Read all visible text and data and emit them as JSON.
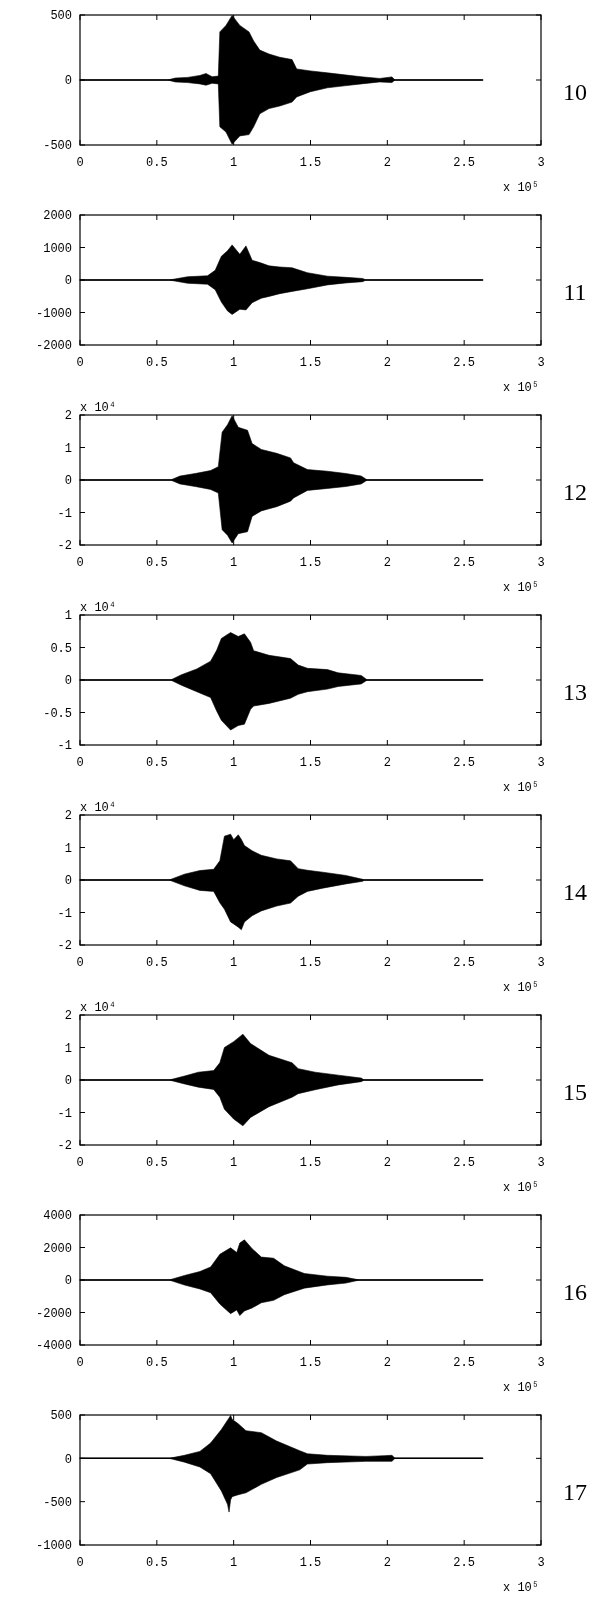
{
  "chart_data": [
    {
      "type": "line",
      "annotations": [
        "10"
      ],
      "xlabel": "x 10⁵",
      "xlim": [
        0,
        3
      ],
      "xticks": [
        0,
        0.5,
        1,
        1.5,
        2,
        2.5,
        3
      ],
      "ylim": [
        -500,
        500
      ],
      "yticks": [
        -500,
        0,
        500
      ],
      "series": [
        {
          "color": "#000000",
          "x": [
            0,
            0.57,
            0.62,
            0.7,
            0.78,
            0.82,
            0.86,
            0.9,
            0.91,
            0.95,
            0.99,
            1.04,
            1.1,
            1.13,
            1.17,
            1.23,
            1.3,
            1.38,
            1.41,
            1.5,
            1.61,
            1.72,
            1.83,
            1.95,
            2.03,
            2.05,
            2.62
          ],
          "values": [
            0,
            0,
            0,
            0,
            0,
            0,
            0,
            0,
            0,
            0,
            0,
            0,
            0,
            0,
            0,
            0,
            0,
            0,
            0,
            0,
            0,
            0,
            0,
            0,
            0,
            0,
            0
          ],
          "upper": [
            0,
            0,
            15,
            20,
            35,
            50,
            25,
            30,
            370,
            420,
            497,
            420,
            370,
            300,
            230,
            200,
            175,
            157,
            85,
            70,
            55,
            40,
            25,
            12,
            24,
            0,
            0
          ],
          "lower": [
            0,
            0,
            -15,
            -20,
            -30,
            -40,
            -25,
            -30,
            -360,
            -400,
            -494,
            -430,
            -420,
            -360,
            -260,
            -220,
            -200,
            -170,
            -130,
            -90,
            -60,
            -45,
            -30,
            -15,
            -20,
            0,
            0
          ]
        }
      ]
    },
    {
      "type": "line",
      "annotations": [
        "11"
      ],
      "xlabel": "x 10⁵",
      "xlim": [
        0,
        3
      ],
      "xticks": [
        0,
        0.5,
        1,
        1.5,
        2,
        2.5,
        3
      ],
      "ylim": [
        -2000,
        2000
      ],
      "yticks": [
        -2000,
        -1000,
        0,
        1000,
        2000
      ],
      "series": [
        {
          "color": "#000000",
          "x": [
            0,
            0.58,
            0.7,
            0.83,
            0.88,
            0.92,
            0.96,
            0.99,
            1.04,
            1.08,
            1.12,
            1.18,
            1.23,
            1.3,
            1.38,
            1.48,
            1.61,
            1.73,
            1.84,
            1.86,
            2.62
          ],
          "values": [
            0,
            0,
            0,
            0,
            0,
            0,
            0,
            0,
            0,
            0,
            0,
            0,
            0,
            0,
            0,
            0,
            0,
            0,
            0,
            0,
            0
          ],
          "upper": [
            0,
            0,
            100,
            130,
            300,
            730,
            900,
            1080,
            790,
            1050,
            610,
            520,
            435,
            400,
            376,
            224,
            118,
            82,
            47,
            0,
            0
          ],
          "lower": [
            0,
            0,
            -100,
            -130,
            -300,
            -680,
            -950,
            -1060,
            -900,
            -920,
            -700,
            -560,
            -505,
            -420,
            -350,
            -270,
            -150,
            -90,
            -50,
            0,
            0
          ]
        }
      ]
    },
    {
      "type": "line",
      "annotations": [
        "12"
      ],
      "xlabel": "x 10⁵",
      "ylabel": "x 10⁴",
      "xlim": [
        0,
        3
      ],
      "xticks": [
        0,
        0.5,
        1,
        1.5,
        2,
        2.5,
        3
      ],
      "ylim": [
        -2,
        2
      ],
      "yticks": [
        -2,
        -1,
        0,
        1,
        2
      ],
      "series": [
        {
          "color": "#000000",
          "x": [
            0,
            0.59,
            0.65,
            0.75,
            0.85,
            0.9,
            0.925,
            0.96,
            0.99,
            1.03,
            1.09,
            1.12,
            1.18,
            1.28,
            1.37,
            1.39,
            1.48,
            1.61,
            1.73,
            1.83,
            1.87,
            2.62
          ],
          "values": [
            0,
            0,
            0,
            0,
            0,
            0,
            0,
            0,
            0,
            0,
            0,
            0,
            0,
            0,
            0,
            0,
            0,
            0,
            0,
            0,
            0,
            0
          ],
          "upper": [
            0,
            0,
            0.12,
            0.2,
            0.29,
            0.41,
            1.47,
            1.7,
            1.98,
            1.62,
            1.53,
            1.12,
            0.94,
            0.82,
            0.68,
            0.53,
            0.32,
            0.27,
            0.2,
            0.12,
            0,
            0
          ],
          "lower": [
            0,
            0,
            -0.12,
            -0.2,
            -0.29,
            -0.4,
            -1.53,
            -1.7,
            -1.94,
            -1.65,
            -1.59,
            -1.12,
            -0.95,
            -0.82,
            -0.65,
            -0.55,
            -0.32,
            -0.26,
            -0.2,
            -0.12,
            0,
            0
          ]
        }
      ]
    },
    {
      "type": "line",
      "annotations": [
        "13"
      ],
      "xlabel": "x 10⁵",
      "ylabel": "x 10⁴",
      "xlim": [
        0,
        3
      ],
      "xticks": [
        0,
        0.5,
        1,
        1.5,
        2,
        2.5,
        3
      ],
      "ylim": [
        -1,
        1
      ],
      "yticks": [
        -1,
        -0.5,
        0,
        0.5,
        1
      ],
      "series": [
        {
          "color": "#000000",
          "x": [
            0,
            0.59,
            0.66,
            0.76,
            0.85,
            0.89,
            0.92,
            0.98,
            1.03,
            1.07,
            1.11,
            1.13,
            1.23,
            1.37,
            1.42,
            1.48,
            1.61,
            1.68,
            1.83,
            1.87,
            2.62
          ],
          "values": [
            0,
            0,
            0,
            0,
            0,
            0,
            0,
            0,
            0,
            0,
            0,
            0,
            0,
            0,
            0,
            0,
            0,
            0,
            0,
            0,
            0
          ],
          "upper": [
            0,
            0,
            0.08,
            0.17,
            0.29,
            0.46,
            0.64,
            0.73,
            0.67,
            0.71,
            0.58,
            0.45,
            0.38,
            0.33,
            0.23,
            0.18,
            0.16,
            0.11,
            0.07,
            0,
            0
          ],
          "lower": [
            0,
            0,
            -0.08,
            -0.18,
            -0.27,
            -0.48,
            -0.62,
            -0.77,
            -0.7,
            -0.68,
            -0.45,
            -0.4,
            -0.36,
            -0.28,
            -0.22,
            -0.18,
            -0.14,
            -0.1,
            -0.06,
            0,
            0
          ]
        }
      ]
    },
    {
      "type": "line",
      "annotations": [
        "14"
      ],
      "xlabel": "x 10⁵",
      "ylabel": "x 10⁴",
      "xlim": [
        0,
        3
      ],
      "xticks": [
        0,
        0.5,
        1,
        1.5,
        2,
        2.5,
        3
      ],
      "ylim": [
        -2,
        2
      ],
      "yticks": [
        -2,
        -1,
        0,
        1,
        2
      ],
      "series": [
        {
          "color": "#000000",
          "x": [
            0,
            0.58,
            0.68,
            0.78,
            0.87,
            0.91,
            0.94,
            0.98,
            1.0,
            1.03,
            1.05,
            1.07,
            1.12,
            1.18,
            1.28,
            1.37,
            1.42,
            1.48,
            1.58,
            1.73,
            1.84,
            1.85,
            2.62
          ],
          "values": [
            0,
            0,
            0,
            0,
            0,
            0,
            0,
            0,
            0,
            0,
            0,
            0,
            0,
            0,
            0,
            0,
            0,
            0,
            0,
            0,
            0,
            0,
            0
          ],
          "upper": [
            0,
            0,
            0.18,
            0.29,
            0.33,
            0.59,
            1.35,
            1.41,
            1.24,
            1.39,
            1.25,
            1.06,
            0.9,
            0.76,
            0.65,
            0.59,
            0.35,
            0.3,
            0.24,
            0.14,
            0.02,
            0,
            0
          ],
          "lower": [
            0,
            0,
            -0.18,
            -0.32,
            -0.35,
            -0.7,
            -0.9,
            -1.29,
            -1.35,
            -1.45,
            -1.53,
            -1.29,
            -1.1,
            -0.95,
            -0.8,
            -0.71,
            -0.5,
            -0.35,
            -0.25,
            -0.12,
            -0.04,
            0,
            0
          ]
        }
      ]
    },
    {
      "type": "line",
      "annotations": [
        "15"
      ],
      "xlabel": "x 10⁵",
      "ylabel": "x 10⁴",
      "xlim": [
        0,
        3
      ],
      "xticks": [
        0,
        0.5,
        1,
        1.5,
        2,
        2.5,
        3
      ],
      "ylim": [
        -2,
        2
      ],
      "yticks": [
        -2,
        -1,
        0,
        1,
        2
      ],
      "series": [
        {
          "color": "#000000",
          "x": [
            0,
            0.58,
            0.68,
            0.77,
            0.87,
            0.91,
            0.94,
            1.0,
            1.06,
            1.11,
            1.23,
            1.38,
            1.42,
            1.53,
            1.68,
            1.83,
            1.85,
            2.62
          ],
          "values": [
            0,
            0,
            0,
            0,
            0,
            0,
            0,
            0,
            0,
            0,
            0,
            0,
            0,
            0,
            0,
            0,
            0,
            0
          ],
          "upper": [
            0,
            0,
            0.12,
            0.24,
            0.29,
            0.53,
            1.0,
            1.18,
            1.41,
            1.12,
            0.76,
            0.53,
            0.35,
            0.24,
            0.15,
            0.06,
            0,
            0
          ],
          "lower": [
            0,
            0,
            -0.12,
            -0.22,
            -0.29,
            -0.53,
            -0.9,
            -1.2,
            -1.41,
            -1.15,
            -0.82,
            -0.53,
            -0.42,
            -0.3,
            -0.15,
            -0.05,
            0,
            0
          ]
        }
      ]
    },
    {
      "type": "line",
      "annotations": [
        "16"
      ],
      "xlabel": "x 10⁵",
      "xlim": [
        0,
        3
      ],
      "xticks": [
        0,
        0.5,
        1,
        1.5,
        2,
        2.5,
        3
      ],
      "ylim": [
        -4000,
        4000
      ],
      "yticks": [
        -4000,
        -2000,
        0,
        2000,
        4000
      ],
      "series": [
        {
          "color": "#000000",
          "x": [
            0,
            0.58,
            0.68,
            0.78,
            0.85,
            0.91,
            0.98,
            1.02,
            1.04,
            1.07,
            1.12,
            1.18,
            1.26,
            1.33,
            1.46,
            1.61,
            1.73,
            1.82,
            2.62
          ],
          "values": [
            0,
            0,
            0,
            0,
            0,
            0,
            0,
            0,
            0,
            0,
            0,
            0,
            0,
            0,
            0,
            0,
            0,
            0,
            0
          ],
          "upper": [
            0,
            0,
            280,
            520,
            800,
            1580,
            1980,
            1690,
            2280,
            2470,
            1930,
            1410,
            1340,
            870,
            400,
            235,
            165,
            0,
            0
          ],
          "lower": [
            0,
            0,
            -310,
            -550,
            -780,
            -1480,
            -2070,
            -1840,
            -2190,
            -1900,
            -1720,
            -1400,
            -1250,
            -900,
            -500,
            -300,
            -190,
            0,
            0
          ]
        }
      ]
    },
    {
      "type": "line",
      "annotations": [
        "17"
      ],
      "xlabel": "x 10⁵",
      "xlim": [
        0,
        3
      ],
      "xticks": [
        0,
        0.5,
        1,
        1.5,
        2,
        2.5,
        3
      ],
      "ylim": [
        -1000,
        500
      ],
      "yticks": [
        -1000,
        -500,
        0,
        500
      ],
      "series": [
        {
          "color": "#000000",
          "x": [
            0,
            0.58,
            0.68,
            0.78,
            0.85,
            0.92,
            0.96,
            0.97,
            0.98,
            0.99,
            1.03,
            1.08,
            1.18,
            1.28,
            1.43,
            1.48,
            1.61,
            1.86,
            1.98,
            2.03,
            2.05,
            2.62
          ],
          "values": [
            0,
            0,
            0,
            0,
            0,
            0,
            0,
            0,
            0,
            0,
            0,
            0,
            0,
            0,
            0,
            0,
            0,
            0,
            0,
            0,
            0,
            0
          ],
          "upper": [
            0,
            0,
            35,
            80,
            177,
            332,
            440,
            465,
            495,
            450,
            398,
            319,
            296,
            199,
            88,
            53,
            35,
            22,
            31,
            35,
            0,
            0
          ],
          "lower": [
            0,
            0,
            -44,
            -100,
            -177,
            -376,
            -531,
            -620,
            -480,
            -442,
            -420,
            -398,
            -300,
            -221,
            -133,
            -66,
            -50,
            -35,
            -35,
            -35,
            0,
            0
          ]
        }
      ]
    }
  ]
}
